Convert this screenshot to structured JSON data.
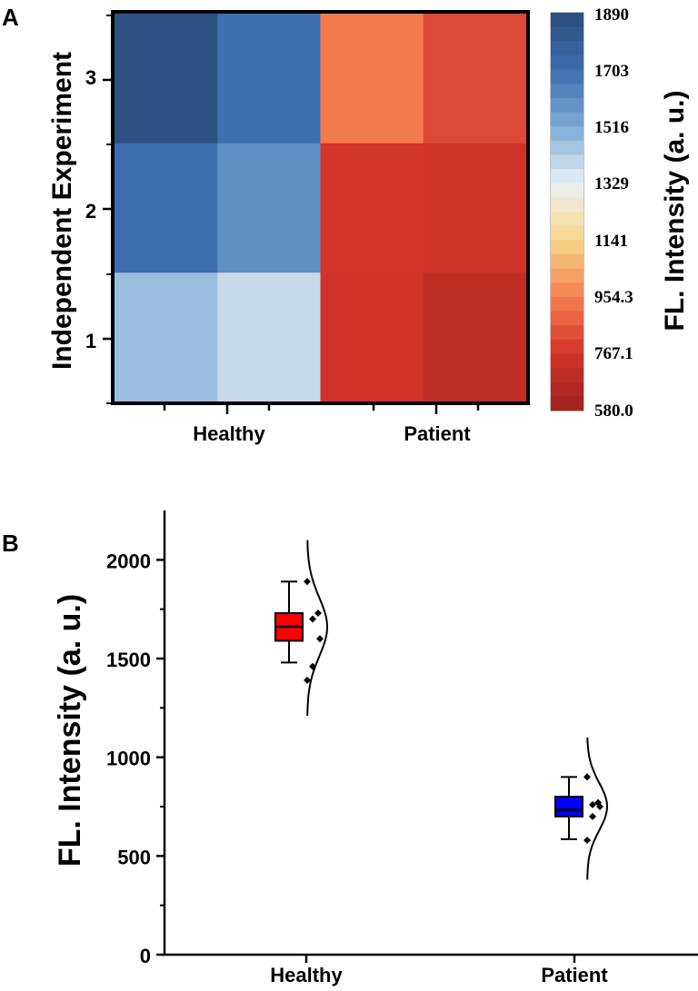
{
  "chart_data": [
    {
      "panel": "A",
      "type": "heatmap",
      "xlabel": "",
      "ylabel": "Independent Experiment",
      "x_categories": [
        "Healthy",
        "Patient"
      ],
      "y_categories": [
        "1",
        "2",
        "3"
      ],
      "columns_per_group": 2,
      "values": [
        [
          1460,
          1390,
          760,
          700
        ],
        [
          1700,
          1600,
          770,
          750
        ],
        [
          1860,
          1700,
          940,
          820
        ]
      ],
      "colorbar": {
        "title": "FL. Intensity (a. u.)",
        "min": 580.0,
        "max": 1890,
        "ticks": [
          "1890",
          "1703",
          "1516",
          "1329",
          "1141",
          "954.3",
          "767.1",
          "580.0"
        ],
        "colors": [
          "#2b4c7a",
          "#3e6eb0",
          "#7aa9d4",
          "#e9f1f5",
          "#f8d789",
          "#f3804f",
          "#d3332a",
          "#9c2321"
        ]
      }
    },
    {
      "panel": "B",
      "type": "box",
      "xlabel": "",
      "ylabel": "FL. Intensity (a. u.)",
      "ylim": [
        0,
        2250
      ],
      "yticks": [
        0,
        500,
        1000,
        1500,
        2000
      ],
      "categories": [
        "Healthy",
        "Patient"
      ],
      "series": [
        {
          "name": "Healthy",
          "color": "#ff0000",
          "whisker_low": 1480,
          "q1": 1590,
          "median": 1660,
          "mean": 1665,
          "q3": 1730,
          "whisker_high": 1890,
          "points": [
            1890,
            1730,
            1700,
            1600,
            1460,
            1390
          ],
          "curve_range": [
            1210,
            2100
          ]
        },
        {
          "name": "Patient",
          "color": "#0000ff",
          "whisker_low": 585,
          "q1": 700,
          "median": 730,
          "mean": 740,
          "q3": 800,
          "whisker_high": 900,
          "points": [
            900,
            770,
            760,
            750,
            700,
            580
          ],
          "curve_range": [
            380,
            1100
          ]
        }
      ]
    }
  ],
  "labels": {
    "panel_a": "A",
    "panel_b": "B"
  }
}
